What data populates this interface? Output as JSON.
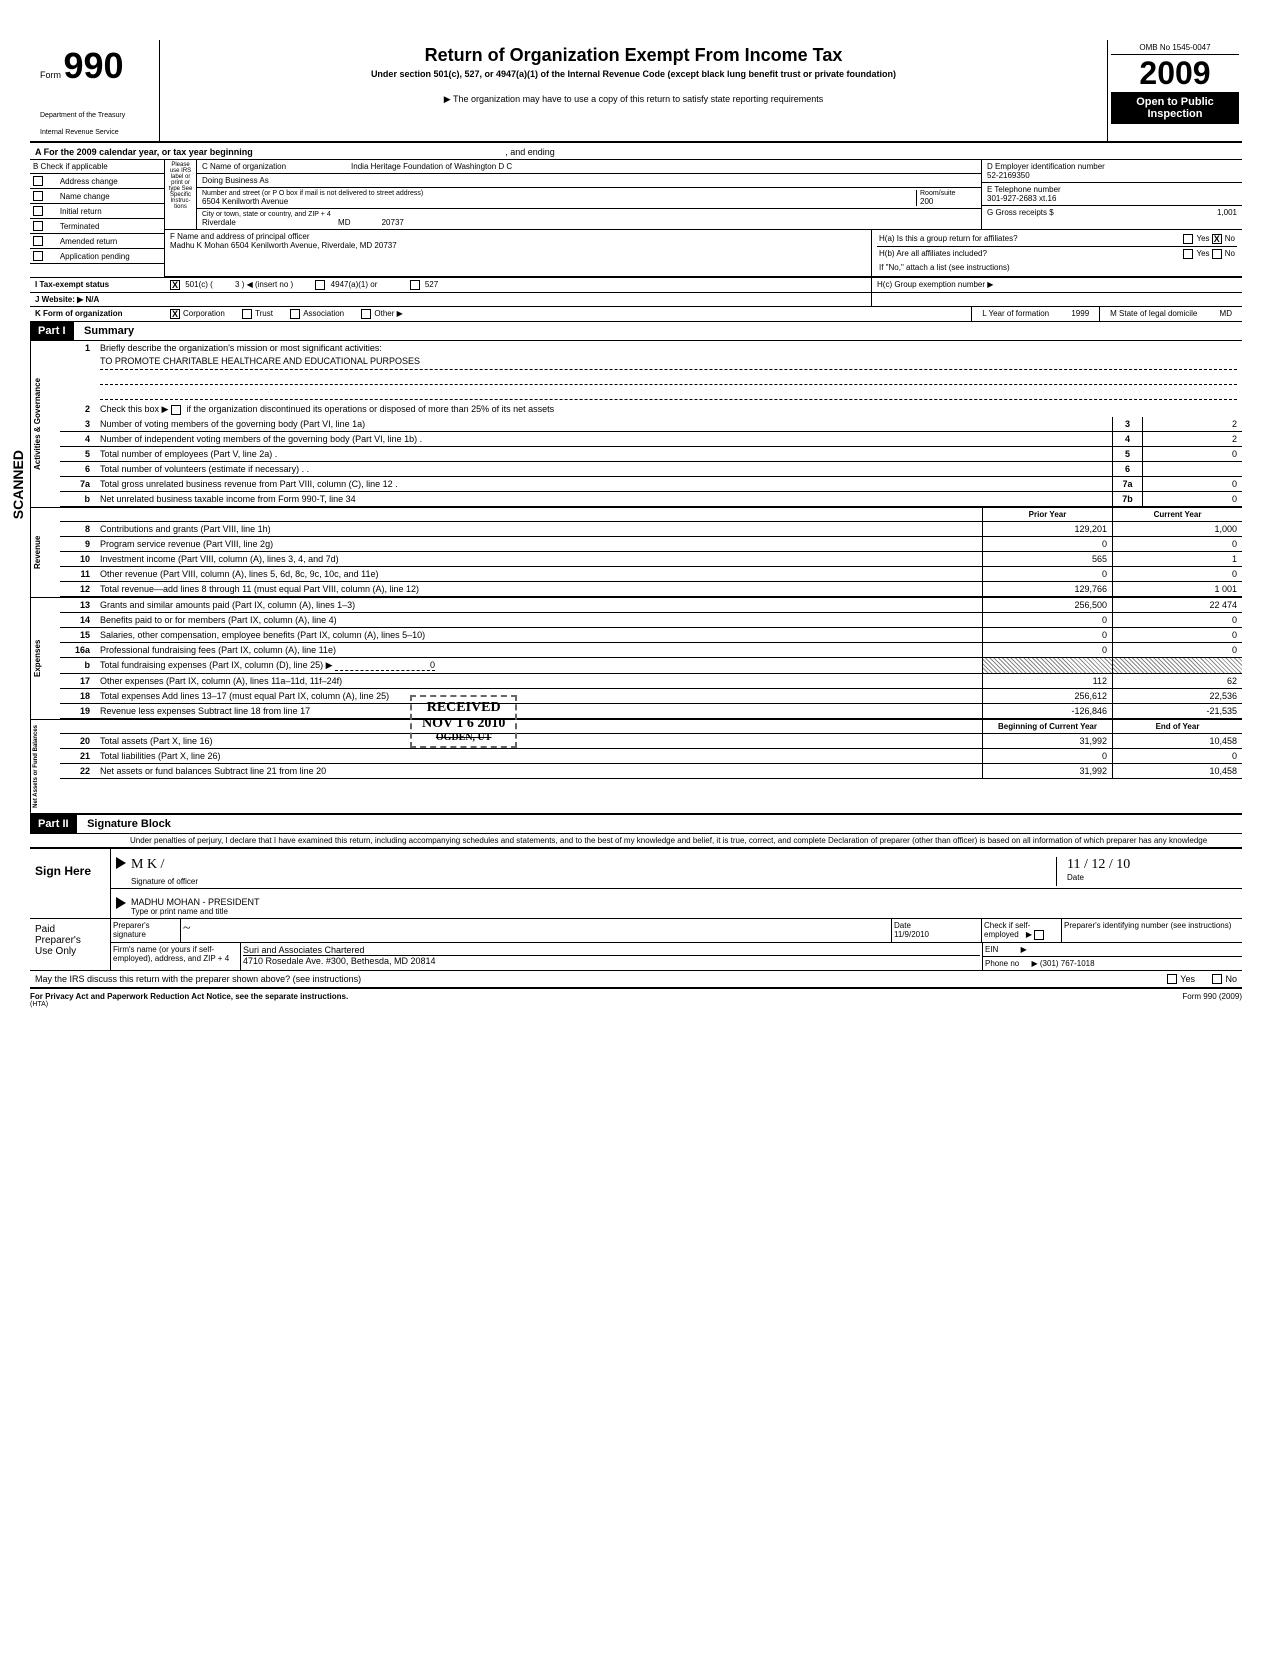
{
  "header": {
    "form_label": "Form",
    "form_number": "990",
    "title": "Return of Organization Exempt From Income Tax",
    "subtitle": "Under section 501(c), 527, or 4947(a)(1) of the Internal Revenue Code (except black lung benefit trust or private foundation)",
    "note": "▶ The organization may have to use a copy of this return to satisfy state reporting requirements",
    "dept": "Department of the Treasury",
    "irs": "Internal Revenue Service",
    "omb": "OMB No 1545-0047",
    "year": "2009",
    "open_public1": "Open to Public",
    "open_public2": "Inspection"
  },
  "section_a": {
    "line_a": "A    For the 2009 calendar year, or tax year beginning",
    "ending": ", and ending"
  },
  "section_b": {
    "header": "B  Check if applicable",
    "items": [
      "Address change",
      "Name change",
      "Initial return",
      "Terminated",
      "Amended return",
      "Application pending"
    ]
  },
  "section_c": {
    "use_irs": "Please use IRS label or print or type See Specific Instruc-tions",
    "c_label": "C  Name of organization",
    "org_name": "India Heritage Foundation of Washington D C",
    "dba": "Doing Business As",
    "street_label": "Number and street (or P O  box if mail is not delivered to street address)",
    "street": "6504 Kenilworth Avenue",
    "room_label": "Room/suite",
    "room": "200",
    "city_label": "City or town, state or country, and ZIP + 4",
    "city": "Riverdale                                              MD              20737"
  },
  "section_d": {
    "label": "D   Employer identification number",
    "ein": "52-2169350",
    "e_label": "E   Telephone number",
    "phone": "301-927-2683 xt.16",
    "g_label": "G   Gross receipts $",
    "g_val": "1,001"
  },
  "section_f": {
    "label": "F     Name and address of principal officer",
    "officer": "Madhu K Mohan 6504 Kenilworth Avenue, Riverdale, MD  20737"
  },
  "section_h": {
    "ha": "H(a) Is this a group return for affiliates?",
    "hb": "H(b) Are all affiliates included?",
    "hb_note": "If \"No,\" attach a list (see instructions)",
    "hc": "H(c) Group exemption number  ▶"
  },
  "section_i": {
    "label": "I     Tax-exempt status",
    "501c": "501(c) (",
    "insert": "3 ) ◀  (insert no )",
    "4947": "4947(a)(1) or",
    "527": "527"
  },
  "section_j": {
    "label": "J    Website:  ▶  N/A"
  },
  "section_k": {
    "label": "K  Form of organization",
    "corp": "Corporation",
    "trust": "Trust",
    "assoc": "Association",
    "other": "Other ▶",
    "l_label": "L  Year of formation",
    "l_val": "1999",
    "m_label": "M State of legal domicile",
    "m_val": "MD"
  },
  "part1": {
    "header": "Part I",
    "title": "Summary",
    "line1_num": "1",
    "line1": "Briefly describe the organization's mission or most significant activities:",
    "line1_text": "TO PROMOTE CHARITABLE HEALTHCARE AND EDUCATIONAL PURPOSES",
    "line2_num": "2",
    "line2": "Check this box  ▶         if the organization discontinued its operations or disposed of more than 25% of its net assets",
    "lines_top": [
      {
        "num": "3",
        "desc": "Number of voting members of the governing body (Part VI, line 1a)",
        "box": "3",
        "val": "2"
      },
      {
        "num": "4",
        "desc": "Number of independent voting members of the governing body (Part VI, line 1b) .",
        "box": "4",
        "val": "2"
      },
      {
        "num": "5",
        "desc": "Total number of employees (Part V, line 2a)       .",
        "box": "5",
        "val": "0"
      },
      {
        "num": "6",
        "desc": "Total number of volunteers (estimate if necessary)                .          .",
        "box": "6",
        "val": ""
      },
      {
        "num": "7a",
        "desc": "Total gross unrelated business revenue from Part VIII, column (C), line 12 .",
        "box": "7a",
        "val": "0"
      },
      {
        "num": "b",
        "desc": "Net unrelated business taxable income from Form 990-T, line 34",
        "box": "7b",
        "val": "0"
      }
    ],
    "col_headers": {
      "prior": "Prior Year",
      "current": "Current Year"
    },
    "revenue_label": "Revenue",
    "revenue_lines": [
      {
        "num": "8",
        "desc": "Contributions and grants (Part VIII, line 1h)",
        "prior": "129,201",
        "current": "1,000"
      },
      {
        "num": "9",
        "desc": "Program service revenue (Part VIII, line 2g)",
        "prior": "0",
        "current": "0"
      },
      {
        "num": "10",
        "desc": "Investment income (Part VIII, column (A), lines 3, 4, and 7d)",
        "prior": "565",
        "current": "1"
      },
      {
        "num": "11",
        "desc": "Other revenue (Part VIII, column (A), lines 5, 6d, 8c, 9c, 10c, and 11e)",
        "prior": "0",
        "current": "0"
      },
      {
        "num": "12",
        "desc": "Total revenue—add lines 8 through 11 (must equal Part VIII, column (A), line 12)",
        "prior": "129,766",
        "current": "1 001"
      }
    ],
    "expense_label": "Expenses",
    "expense_lines": [
      {
        "num": "13",
        "desc": "Grants and similar amounts paid (Part IX, column (A), lines 1–3)",
        "prior": "256,500",
        "current": "22 474"
      },
      {
        "num": "14",
        "desc": "Benefits paid to or for members (Part IX, column (A), line 4)",
        "prior": "0",
        "current": "0"
      },
      {
        "num": "15",
        "desc": "Salaries, other compensation, employee benefits (Part IX, column (A), lines 5–10)",
        "prior": "0",
        "current": "0"
      },
      {
        "num": "16a",
        "desc": "Professional fundraising fees (Part IX, column (A), line 11e)",
        "prior": "0",
        "current": "0"
      },
      {
        "num": "b",
        "desc": "Total fundraising expenses (Part IX, column (D), line 25)  ▶",
        "prior": "",
        "current": "",
        "shaded": true,
        "inline_val": "0"
      },
      {
        "num": "17",
        "desc": "Other expenses (Part IX, column (A), lines 11a–11d, 11f–24f)",
        "prior": "112",
        "current": "62"
      },
      {
        "num": "18",
        "desc": "Total expenses  Add lines 13–17 (must equal Part IX, column (A), line 25)",
        "prior": "256,612",
        "current": "22,536"
      },
      {
        "num": "19",
        "desc": "Revenue less expenses  Subtract line 18 from line 17",
        "prior": "-126,846",
        "current": "-21,535"
      }
    ],
    "assets_label": "Net Assets or Fund Balances",
    "assets_headers": {
      "begin": "Beginning of Current Year",
      "end": "End of Year"
    },
    "assets_lines": [
      {
        "num": "20",
        "desc": "Total assets (Part X, line 16)",
        "prior": "31,992",
        "current": "10,458"
      },
      {
        "num": "21",
        "desc": "Total liabilities (Part X, line 26)",
        "prior": "0",
        "current": "0"
      },
      {
        "num": "22",
        "desc": "Net assets or fund balances  Subtract line 21 from line 20",
        "prior": "31,992",
        "current": "10,458"
      }
    ]
  },
  "part2": {
    "header": "Part II",
    "title": "Signature Block",
    "perjury": "Under penalties of perjury, I declare that I have examined this return, including accompanying schedules and statements, and to the best of my knowledge and belief, it is true, correct, and complete  Declaration of preparer (other than officer) is based on all information of which preparer has any knowledge",
    "sign_here": "Sign Here",
    "sig_officer": "Signature of officer",
    "date_label": "Date",
    "officer_name": "MADHU MOHAN - PRESIDENT",
    "type_name": "Type or print name and title",
    "date_val": "11 / 12 / 10",
    "paid": "Paid",
    "preparers": "Preparer's",
    "use_only": "Use Only",
    "prep_sig": "Preparer's signature",
    "prep_date": "11/9/2010",
    "check_self": "Check if self-employed",
    "prep_id": "Preparer's identifying number (see instructions)",
    "firm_label": "Firm's name (or yours if self-employed), address, and ZIP + 4",
    "firm_name": "Suri and Associates Chartered",
    "firm_addr": "4710 Rosedale Ave. #300, Bethesda, MD 20814",
    "ein_label": "EIN",
    "phone_label": "Phone no",
    "phone_val": "▶  (301) 767-1018",
    "discuss": "May the IRS discuss this return with the preparer shown above? (see instructions)",
    "yes": "Yes",
    "no": "No"
  },
  "footer": {
    "privacy": "For Privacy Act and Paperwork Reduction Act Notice, see the separate instructions.",
    "hta": "(HTA)",
    "form": "Form 990 (2009)"
  },
  "stamp": {
    "received": "RECEIVED",
    "date": "NOV 1 6 2010",
    "ogden": "OGDEN, UT"
  },
  "scanned": "SCANNED",
  "activities": "Activities & Governance"
}
